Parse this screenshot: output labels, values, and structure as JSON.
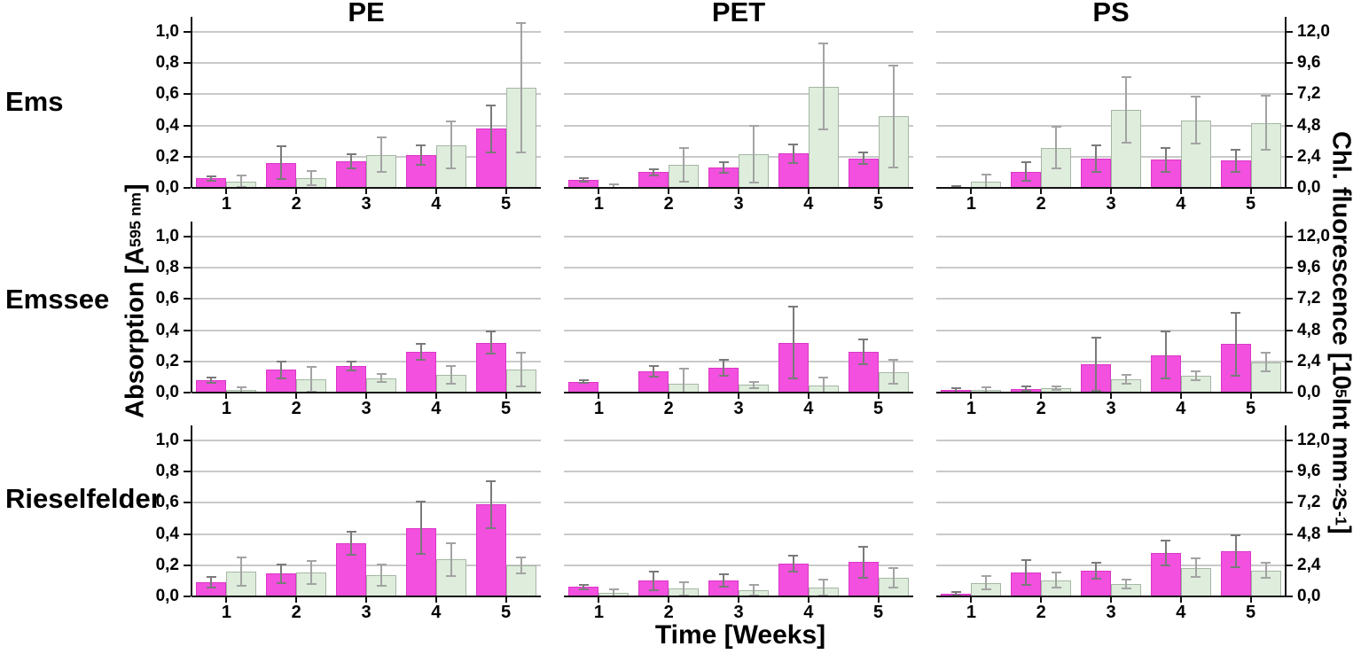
{
  "figure": {
    "background": "#ffffff",
    "columns": [
      "PE",
      "PET",
      "PS"
    ],
    "rows": [
      "Ems",
      "Emssee",
      "Rieselfelder"
    ],
    "x_axis_title": "Time [Weeks]",
    "left_axis_title": {
      "pre": "Absorption [A",
      "sub": "595 nm",
      "post": "]"
    },
    "right_axis_title": {
      "pre": "Chl. fluorescence [10",
      "sup1": "5",
      "mid1": " Int mm",
      "sup2": "-2",
      "mid2": " s",
      "sup3": "-1",
      "post": "]"
    },
    "colors": {
      "absorption_fill": "#f350df",
      "absorption_border": "#d936c6",
      "fluorescence_fill": "#deeddc",
      "fluorescence_border": "#a5b7a4",
      "grid": "#c9c9c9",
      "axis": "#111111",
      "error_absorption": "#7a7a7a",
      "error_fluorescence": "#a3a3a3"
    }
  },
  "chart_data": {
    "type": "bar",
    "layout": "3x3 grid; rows are sampling sites, columns are plastic types; two bars per week",
    "categories": [
      "1",
      "2",
      "3",
      "4",
      "5"
    ],
    "x_label": "Time [Weeks]",
    "left_axis": {
      "label": "Absorption [A 595 nm]",
      "range": [
        0,
        1.0
      ],
      "tick_values": [
        0,
        0.2,
        0.4,
        0.6,
        0.8,
        1.0
      ],
      "tick_labels": [
        "0,0",
        "0,2",
        "0,4",
        "0,6",
        "0,8",
        "1,0"
      ],
      "decimal_style": "comma"
    },
    "right_axis": {
      "label": "Chl. fluorescence [10^5 Int mm^-2 s^-1]",
      "range": [
        0,
        12.0
      ],
      "tick_values": [
        0,
        2.4,
        4.8,
        7.2,
        9.6,
        12.0
      ],
      "tick_labels": [
        "0,0",
        "2,4",
        "4,8",
        "7,2",
        "9,6",
        "12,0"
      ],
      "decimal_style": "comma"
    },
    "series_legend": [
      {
        "name": "Absorption",
        "style": "magenta bars",
        "axis": "left"
      },
      {
        "name": "Chl. fluorescence",
        "style": "pale green bars",
        "axis": "right"
      }
    ],
    "grid": true,
    "panels": [
      {
        "row": "Ems",
        "column": "PE",
        "absorption": [
          0.06,
          0.16,
          0.17,
          0.21,
          0.38
        ],
        "absorption_err": [
          0.015,
          0.105,
          0.045,
          0.06,
          0.15
        ],
        "fluorescence": [
          0.5,
          0.75,
          2.55,
          3.3,
          7.7
        ],
        "fluorescence_err": [
          0.45,
          0.55,
          1.35,
          1.8,
          5.0
        ]
      },
      {
        "row": "Ems",
        "column": "PET",
        "absorption": [
          0.05,
          0.1,
          0.13,
          0.22,
          0.19
        ],
        "absorption_err": [
          0.01,
          0.02,
          0.035,
          0.06,
          0.035
        ],
        "fluorescence": [
          0.1,
          1.8,
          2.6,
          7.8,
          5.5
        ],
        "fluorescence_err": [
          0.15,
          1.3,
          2.2,
          3.3,
          3.9
        ]
      },
      {
        "row": "Ems",
        "column": "PS",
        "absorption": [
          0.005,
          0.105,
          0.19,
          0.18,
          0.175
        ],
        "absorption_err": [
          0.005,
          0.06,
          0.085,
          0.075,
          0.07
        ],
        "fluorescence": [
          0.5,
          3.1,
          6.0,
          5.2,
          5.0
        ],
        "fluorescence_err": [
          0.5,
          1.6,
          2.5,
          1.8,
          2.1
        ]
      },
      {
        "row": "Emssee",
        "column": "PE",
        "absorption": [
          0.08,
          0.145,
          0.17,
          0.26,
          0.32
        ],
        "absorption_err": [
          0.015,
          0.055,
          0.03,
          0.05,
          0.07
        ],
        "fluorescence": [
          0.2,
          1.0,
          1.1,
          1.35,
          1.8
        ],
        "fluorescence_err": [
          0.2,
          0.95,
          0.3,
          0.7,
          1.3
        ]
      },
      {
        "row": "Emssee",
        "column": "PET",
        "absorption": [
          0.07,
          0.135,
          0.16,
          0.32,
          0.26
        ],
        "absorption_err": [
          0.008,
          0.035,
          0.05,
          0.23,
          0.08
        ],
        "fluorescence": [
          0,
          0.7,
          0.6,
          0.55,
          1.6
        ],
        "fluorescence_err": [
          0,
          1.15,
          0.25,
          0.6,
          0.9
        ]
      },
      {
        "row": "Emssee",
        "column": "PS",
        "absorption": [
          0.015,
          0.025,
          0.18,
          0.24,
          0.31
        ],
        "absorption_err": [
          0.015,
          0.012,
          0.17,
          0.15,
          0.2
        ],
        "fluorescence": [
          0.2,
          0.35,
          1.0,
          1.3,
          2.35
        ],
        "fluorescence_err": [
          0.2,
          0.12,
          0.35,
          0.35,
          0.7
        ]
      },
      {
        "row": "Rieselfelder",
        "column": "PE",
        "absorption": [
          0.09,
          0.145,
          0.34,
          0.44,
          0.59
        ],
        "absorption_err": [
          0.035,
          0.06,
          0.075,
          0.17,
          0.15
        ],
        "fluorescence": [
          1.9,
          1.85,
          1.65,
          2.85,
          2.4
        ],
        "fluorescence_err": [
          1.1,
          0.9,
          0.8,
          1.25,
          0.6
        ]
      },
      {
        "row": "Rieselfelder",
        "column": "PET",
        "absorption": [
          0.06,
          0.1,
          0.1,
          0.21,
          0.22
        ],
        "absorption_err": [
          0.012,
          0.06,
          0.04,
          0.05,
          0.1
        ],
        "fluorescence": [
          0.25,
          0.6,
          0.5,
          0.7,
          1.4
        ],
        "fluorescence_err": [
          0.3,
          0.5,
          0.4,
          0.6,
          0.75
        ]
      },
      {
        "row": "Rieselfelder",
        "column": "PS",
        "absorption": [
          0.015,
          0.155,
          0.165,
          0.28,
          0.29
        ],
        "absorption_err": [
          0.012,
          0.08,
          0.05,
          0.08,
          0.1
        ],
        "fluorescence": [
          1.05,
          1.25,
          0.95,
          2.2,
          2.0
        ],
        "fluorescence_err": [
          0.5,
          0.6,
          0.35,
          0.7,
          0.6
        ]
      }
    ]
  }
}
